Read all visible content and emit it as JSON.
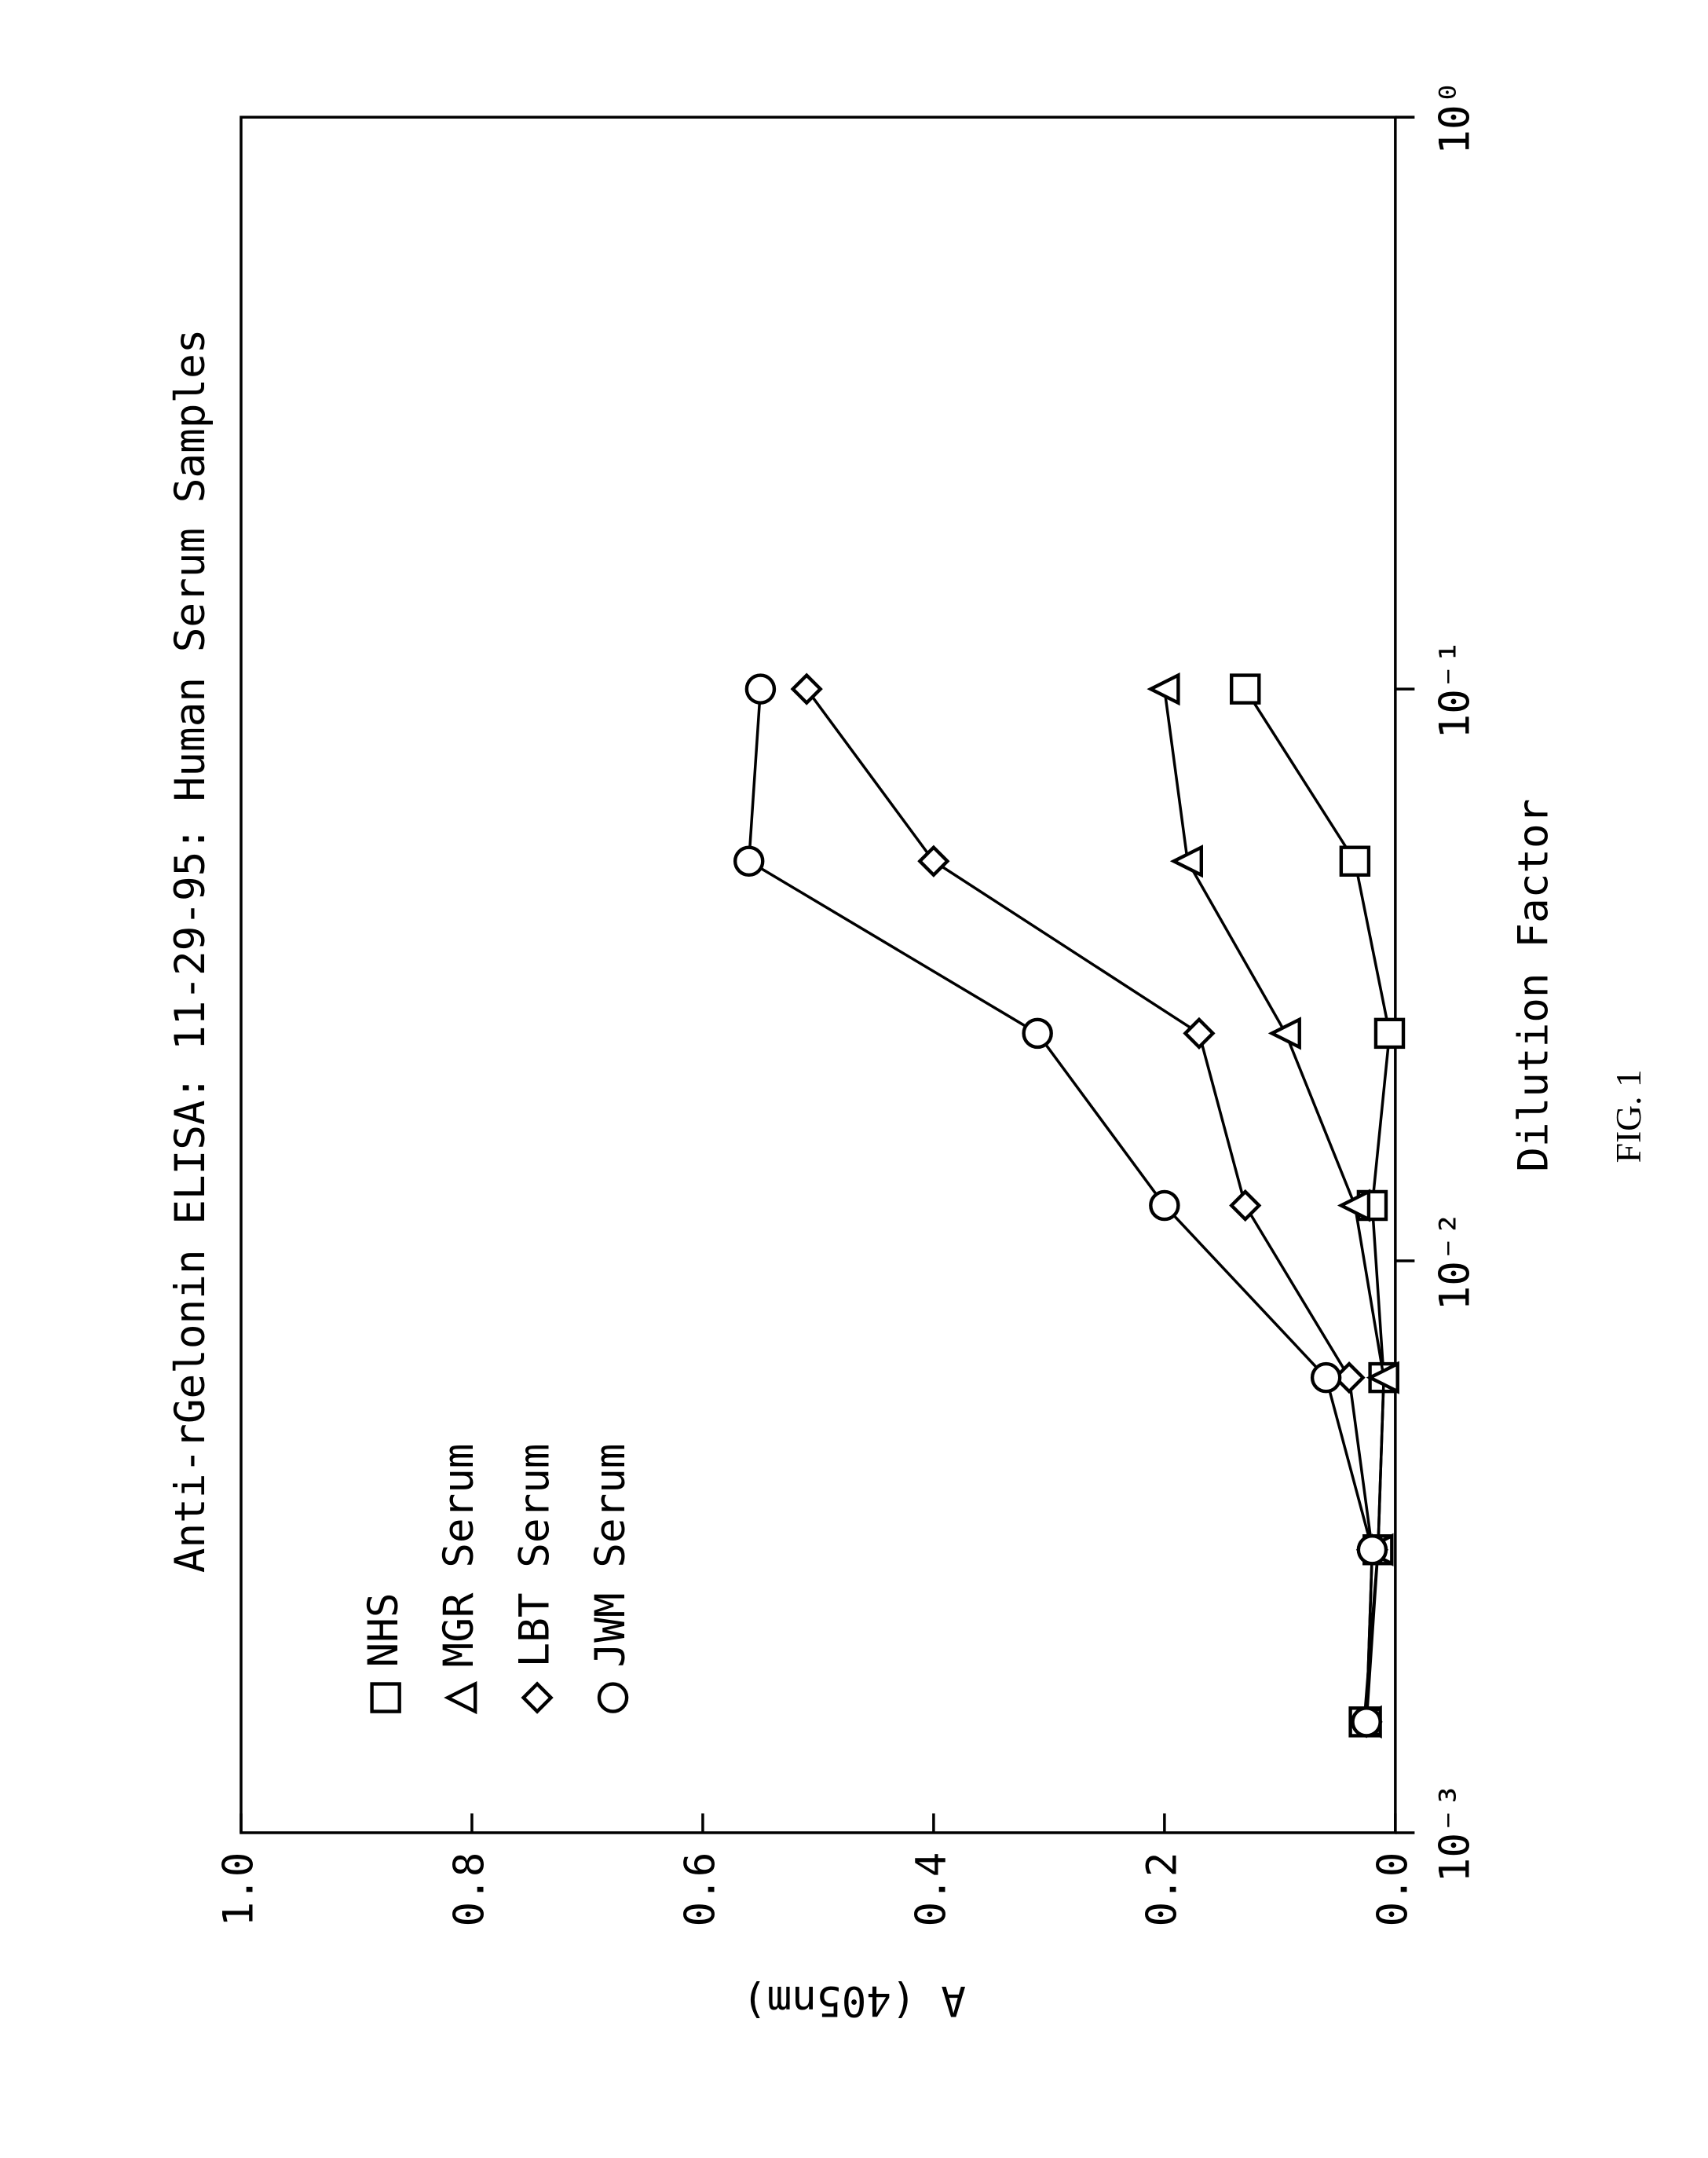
{
  "chart_data": {
    "type": "line",
    "title": "Anti-rGelonin ELISA: 11-29-95: Human Serum Samples",
    "x_label": "Dilution Factor",
    "y_label": "A (405nm)",
    "caption": "FIG. 1",
    "x": [
      0.0015625,
      0.003125,
      0.00625,
      0.0125,
      0.025,
      0.05,
      0.1
    ],
    "xscale": "log",
    "xlim": [
      0.001,
      1
    ],
    "xticks": [
      {
        "value": 0.001,
        "label": "10⁻³"
      },
      {
        "value": 0.01,
        "label": "10⁻²"
      },
      {
        "value": 0.1,
        "label": "10⁻¹"
      },
      {
        "value": 1,
        "label": "10⁰"
      }
    ],
    "ylim": [
      0,
      1
    ],
    "yticks": [
      {
        "value": 0,
        "label": "0.0"
      },
      {
        "value": 0.2,
        "label": "0.2"
      },
      {
        "value": 0.4,
        "label": "0.4"
      },
      {
        "value": 0.6,
        "label": "0.6"
      },
      {
        "value": 0.8,
        "label": "0.8"
      },
      {
        "value": 1,
        "label": "1.0"
      }
    ],
    "legend": "upper left",
    "series": [
      {
        "name": "NHS",
        "color": "#000000",
        "marker": "square",
        "values": [
          0.027,
          0.015,
          0.01,
          0.02,
          0.005,
          0.035,
          0.13
        ]
      },
      {
        "name": "MGR Serum",
        "color": "#000000",
        "marker": "triangle",
        "values": [
          0.025,
          0.015,
          0.01,
          0.035,
          0.095,
          0.18,
          0.2
        ]
      },
      {
        "name": "LBT Serum",
        "color": "#000000",
        "marker": "diamond",
        "values": [
          0.025,
          0.02,
          0.04,
          0.13,
          0.17,
          0.4,
          0.51
        ]
      },
      {
        "name": "JWM Serum",
        "color": "#000000",
        "marker": "circle",
        "values": [
          0.025,
          0.02,
          0.06,
          0.2,
          0.31,
          0.56,
          0.55
        ]
      }
    ]
  }
}
